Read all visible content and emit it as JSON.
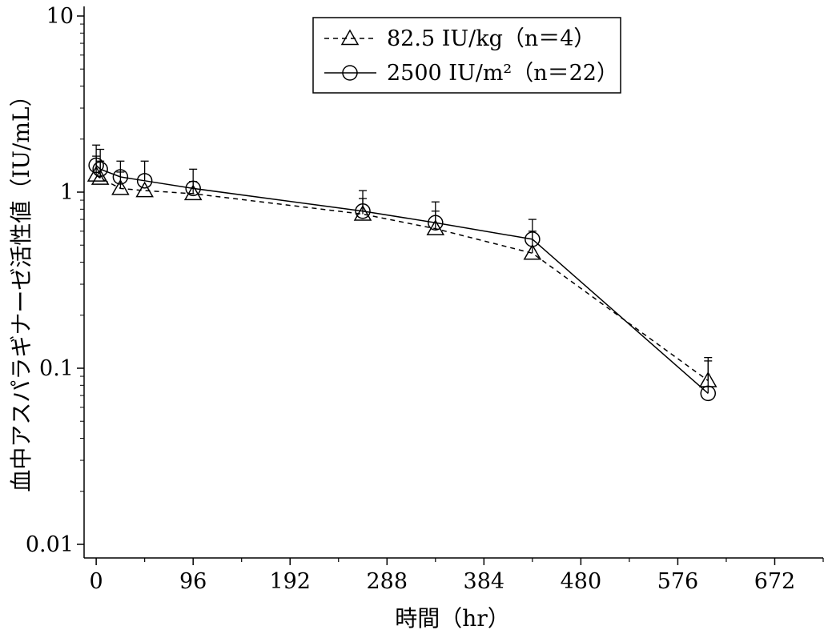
{
  "chart_data": {
    "type": "line",
    "xlabel": "時間（hr）",
    "ylabel": "血中アスパラギナーゼ活性値（IU/mL）",
    "xlim": [
      -12,
      720
    ],
    "ylim": [
      0.01,
      10
    ],
    "yscale": "log",
    "x_ticks": [
      0,
      96,
      192,
      288,
      384,
      480,
      576,
      672
    ],
    "x_minor_ticks": [
      48,
      144,
      240,
      336,
      432,
      528,
      624,
      720
    ],
    "y_ticks": [
      {
        "value": 10,
        "label": "10"
      },
      {
        "value": 1,
        "label": "1"
      },
      {
        "value": 0.1,
        "label": "0.1"
      },
      {
        "value": 0.01,
        "label": "0.01"
      }
    ],
    "grid": false,
    "legend": {
      "placement": "top-center",
      "entries": [
        "82.5 IU/kg（n＝4）",
        "2500 IU/m²（n＝22）"
      ]
    },
    "series": [
      {
        "name": "82.5 IU/kg（n＝4）",
        "marker": "triangle",
        "line_style": "dashed",
        "x": [
          0,
          4,
          24,
          48,
          96,
          264,
          336,
          432,
          606
        ],
        "y": [
          1.25,
          1.2,
          1.05,
          1.02,
          0.98,
          0.75,
          0.62,
          0.45,
          0.085
        ],
        "error_upper": [
          1.6,
          1.5,
          1.3,
          null,
          1.15,
          0.92,
          0.78,
          0.6,
          0.11
        ]
      },
      {
        "name": "2500 IU/m²（n＝22）",
        "marker": "circle",
        "line_style": "solid",
        "x": [
          0,
          4,
          24,
          48,
          96,
          264,
          336,
          432,
          606
        ],
        "y": [
          1.42,
          1.35,
          1.22,
          1.16,
          1.05,
          0.78,
          0.67,
          0.54,
          0.072
        ],
        "error_upper": [
          1.85,
          1.75,
          1.5,
          1.5,
          1.35,
          1.02,
          0.88,
          0.7,
          0.115
        ]
      }
    ]
  }
}
